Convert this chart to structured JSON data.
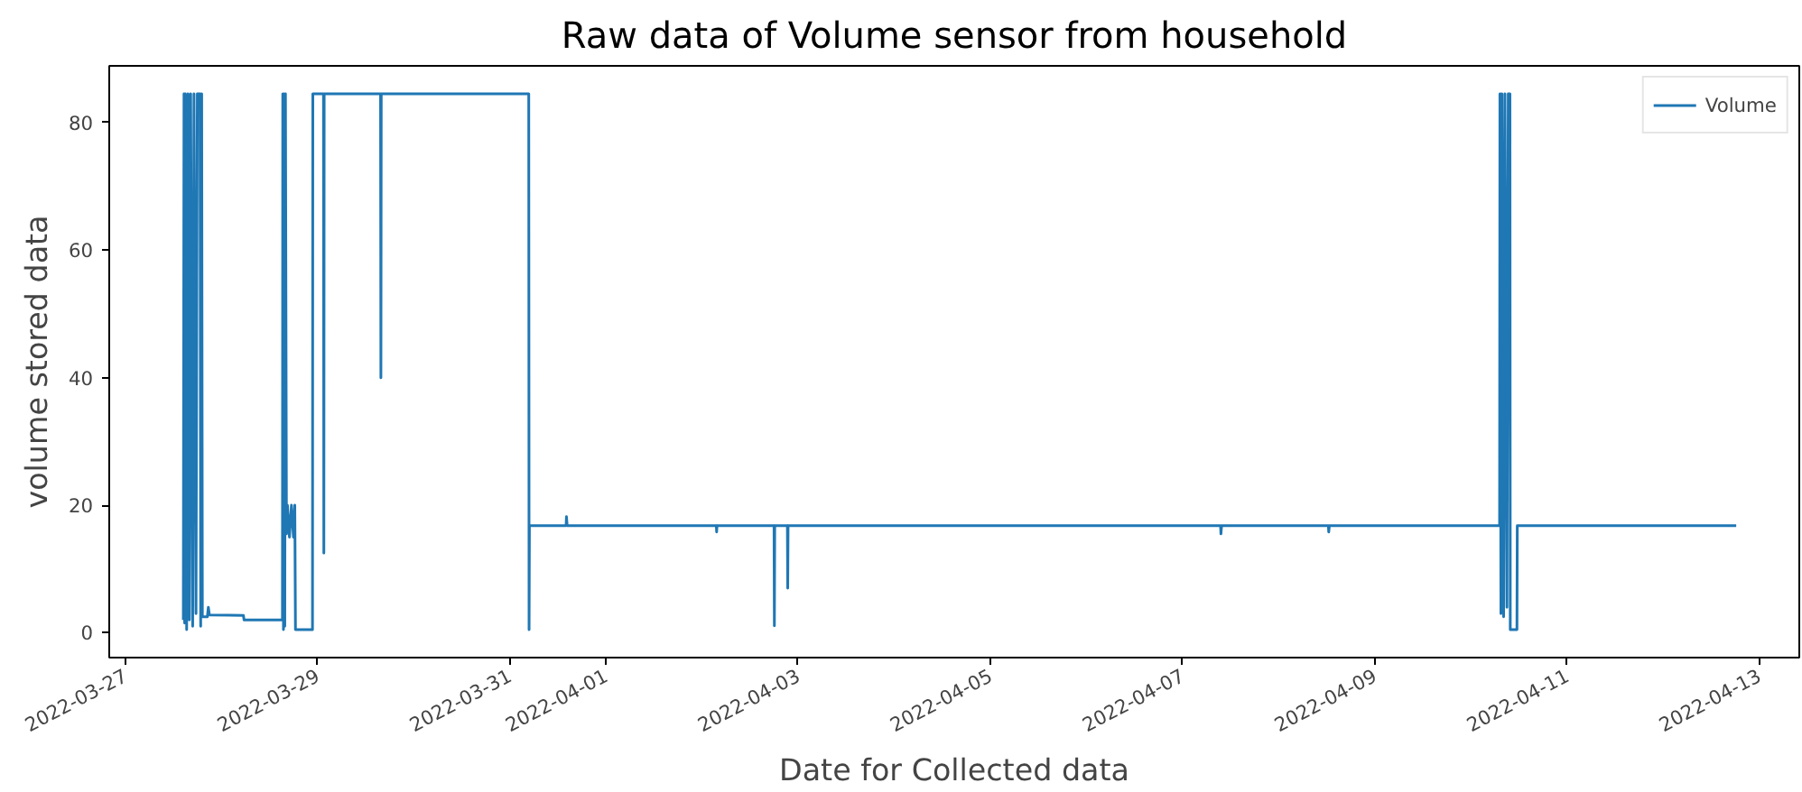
{
  "chart_data": {
    "type": "line",
    "title": "Raw data of Volume sensor from household",
    "xlabel": "Date for Collected data",
    "ylabel": "volume stored data",
    "x": [
      "2022-03-27T14:30",
      "2022-03-27T14:40",
      "2022-03-27T14:50",
      "2022-03-27T15:00",
      "2022-03-27T15:20",
      "2022-03-27T15:40",
      "2022-03-27T16:00",
      "2022-03-27T16:20",
      "2022-03-27T16:50",
      "2022-03-27T17:10",
      "2022-03-27T17:40",
      "2022-03-27T18:00",
      "2022-03-27T18:40",
      "2022-03-27T18:50",
      "2022-03-27T19:05",
      "2022-03-27T19:15",
      "2022-03-27T20:30",
      "2022-03-27T20:45",
      "2022-03-27T21:00",
      "2022-03-28T05:30",
      "2022-03-28T05:40",
      "2022-03-28T15:15",
      "2022-03-28T15:20",
      "2022-03-28T15:30",
      "2022-03-28T15:40",
      "2022-03-28T15:50",
      "2022-03-28T16:00",
      "2022-03-28T16:15",
      "2022-03-28T16:30",
      "2022-03-28T17:00",
      "2022-03-28T17:30",
      "2022-03-28T18:00",
      "2022-03-28T18:20",
      "2022-03-28T18:30",
      "2022-03-28T22:45",
      "2022-03-28T22:50",
      "2022-03-29T01:30",
      "2022-03-29T01:35",
      "2022-03-29T01:40",
      "2022-03-29T15:45",
      "2022-03-29T15:50",
      "2022-03-29T15:55",
      "2022-03-31T04:45",
      "2022-03-31T04:50",
      "2022-03-31T04:55",
      "2022-03-31T14:05",
      "2022-03-31T14:10",
      "2022-03-31T14:20",
      "2022-04-02T03:35",
      "2022-04-02T03:40",
      "2022-04-02T03:45",
      "2022-04-02T18:00",
      "2022-04-02T18:05",
      "2022-04-02T18:10",
      "2022-04-02T21:20",
      "2022-04-02T21:25",
      "2022-04-02T21:30",
      "2022-04-07T09:30",
      "2022-04-07T09:35",
      "2022-04-07T09:45",
      "2022-04-08T12:25",
      "2022-04-08T12:30",
      "2022-04-08T12:40",
      "2022-04-10T07:10",
      "2022-04-10T07:15",
      "2022-04-10T07:30",
      "2022-04-10T07:45",
      "2022-04-10T08:10",
      "2022-04-10T08:30",
      "2022-04-10T09:00",
      "2022-04-10T09:20",
      "2022-04-10T09:45",
      "2022-04-10T09:50",
      "2022-04-10T11:30",
      "2022-04-10T11:35",
      "2022-04-12T18:15"
    ],
    "series": [
      {
        "name": "Volume",
        "color": "#1f77b4",
        "values": [
          2.0,
          84.5,
          1.5,
          84.5,
          0.5,
          84.5,
          2.0,
          84.5,
          1.0,
          84.5,
          3.0,
          84.5,
          84.5,
          1.0,
          84.5,
          2.5,
          2.5,
          4.0,
          2.8,
          2.7,
          2.0,
          2.0,
          84.5,
          0.5,
          84.5,
          1.0,
          84.5,
          15.5,
          20.0,
          15.0,
          20.0,
          15.0,
          20.0,
          0.5,
          0.5,
          84.5,
          84.5,
          12.5,
          84.5,
          84.5,
          40.0,
          84.5,
          84.5,
          0.5,
          16.8,
          16.8,
          18.2,
          16.8,
          16.8,
          15.8,
          16.8,
          16.8,
          1.1,
          16.8,
          16.8,
          7.0,
          16.8,
          16.8,
          15.5,
          16.8,
          16.8,
          15.8,
          16.8,
          16.8,
          84.5,
          3.0,
          84.5,
          2.5,
          84.5,
          4.0,
          84.5,
          84.5,
          0.5,
          0.5,
          16.8,
          16.8
        ]
      }
    ],
    "xlim": [
      "2022-03-26T20:00",
      "2022-04-13T10:00"
    ],
    "xticks": [
      "2022-03-27",
      "2022-03-29",
      "2022-03-31",
      "2022-04-01",
      "2022-04-03",
      "2022-04-05",
      "2022-04-07",
      "2022-04-09",
      "2022-04-11",
      "2022-04-13"
    ],
    "ylim": [
      -3.9,
      88.9
    ],
    "yticks": [
      0,
      20,
      40,
      60,
      80
    ],
    "legend": "top right",
    "grid": false,
    "marker": "none",
    "line_style": "solid"
  }
}
